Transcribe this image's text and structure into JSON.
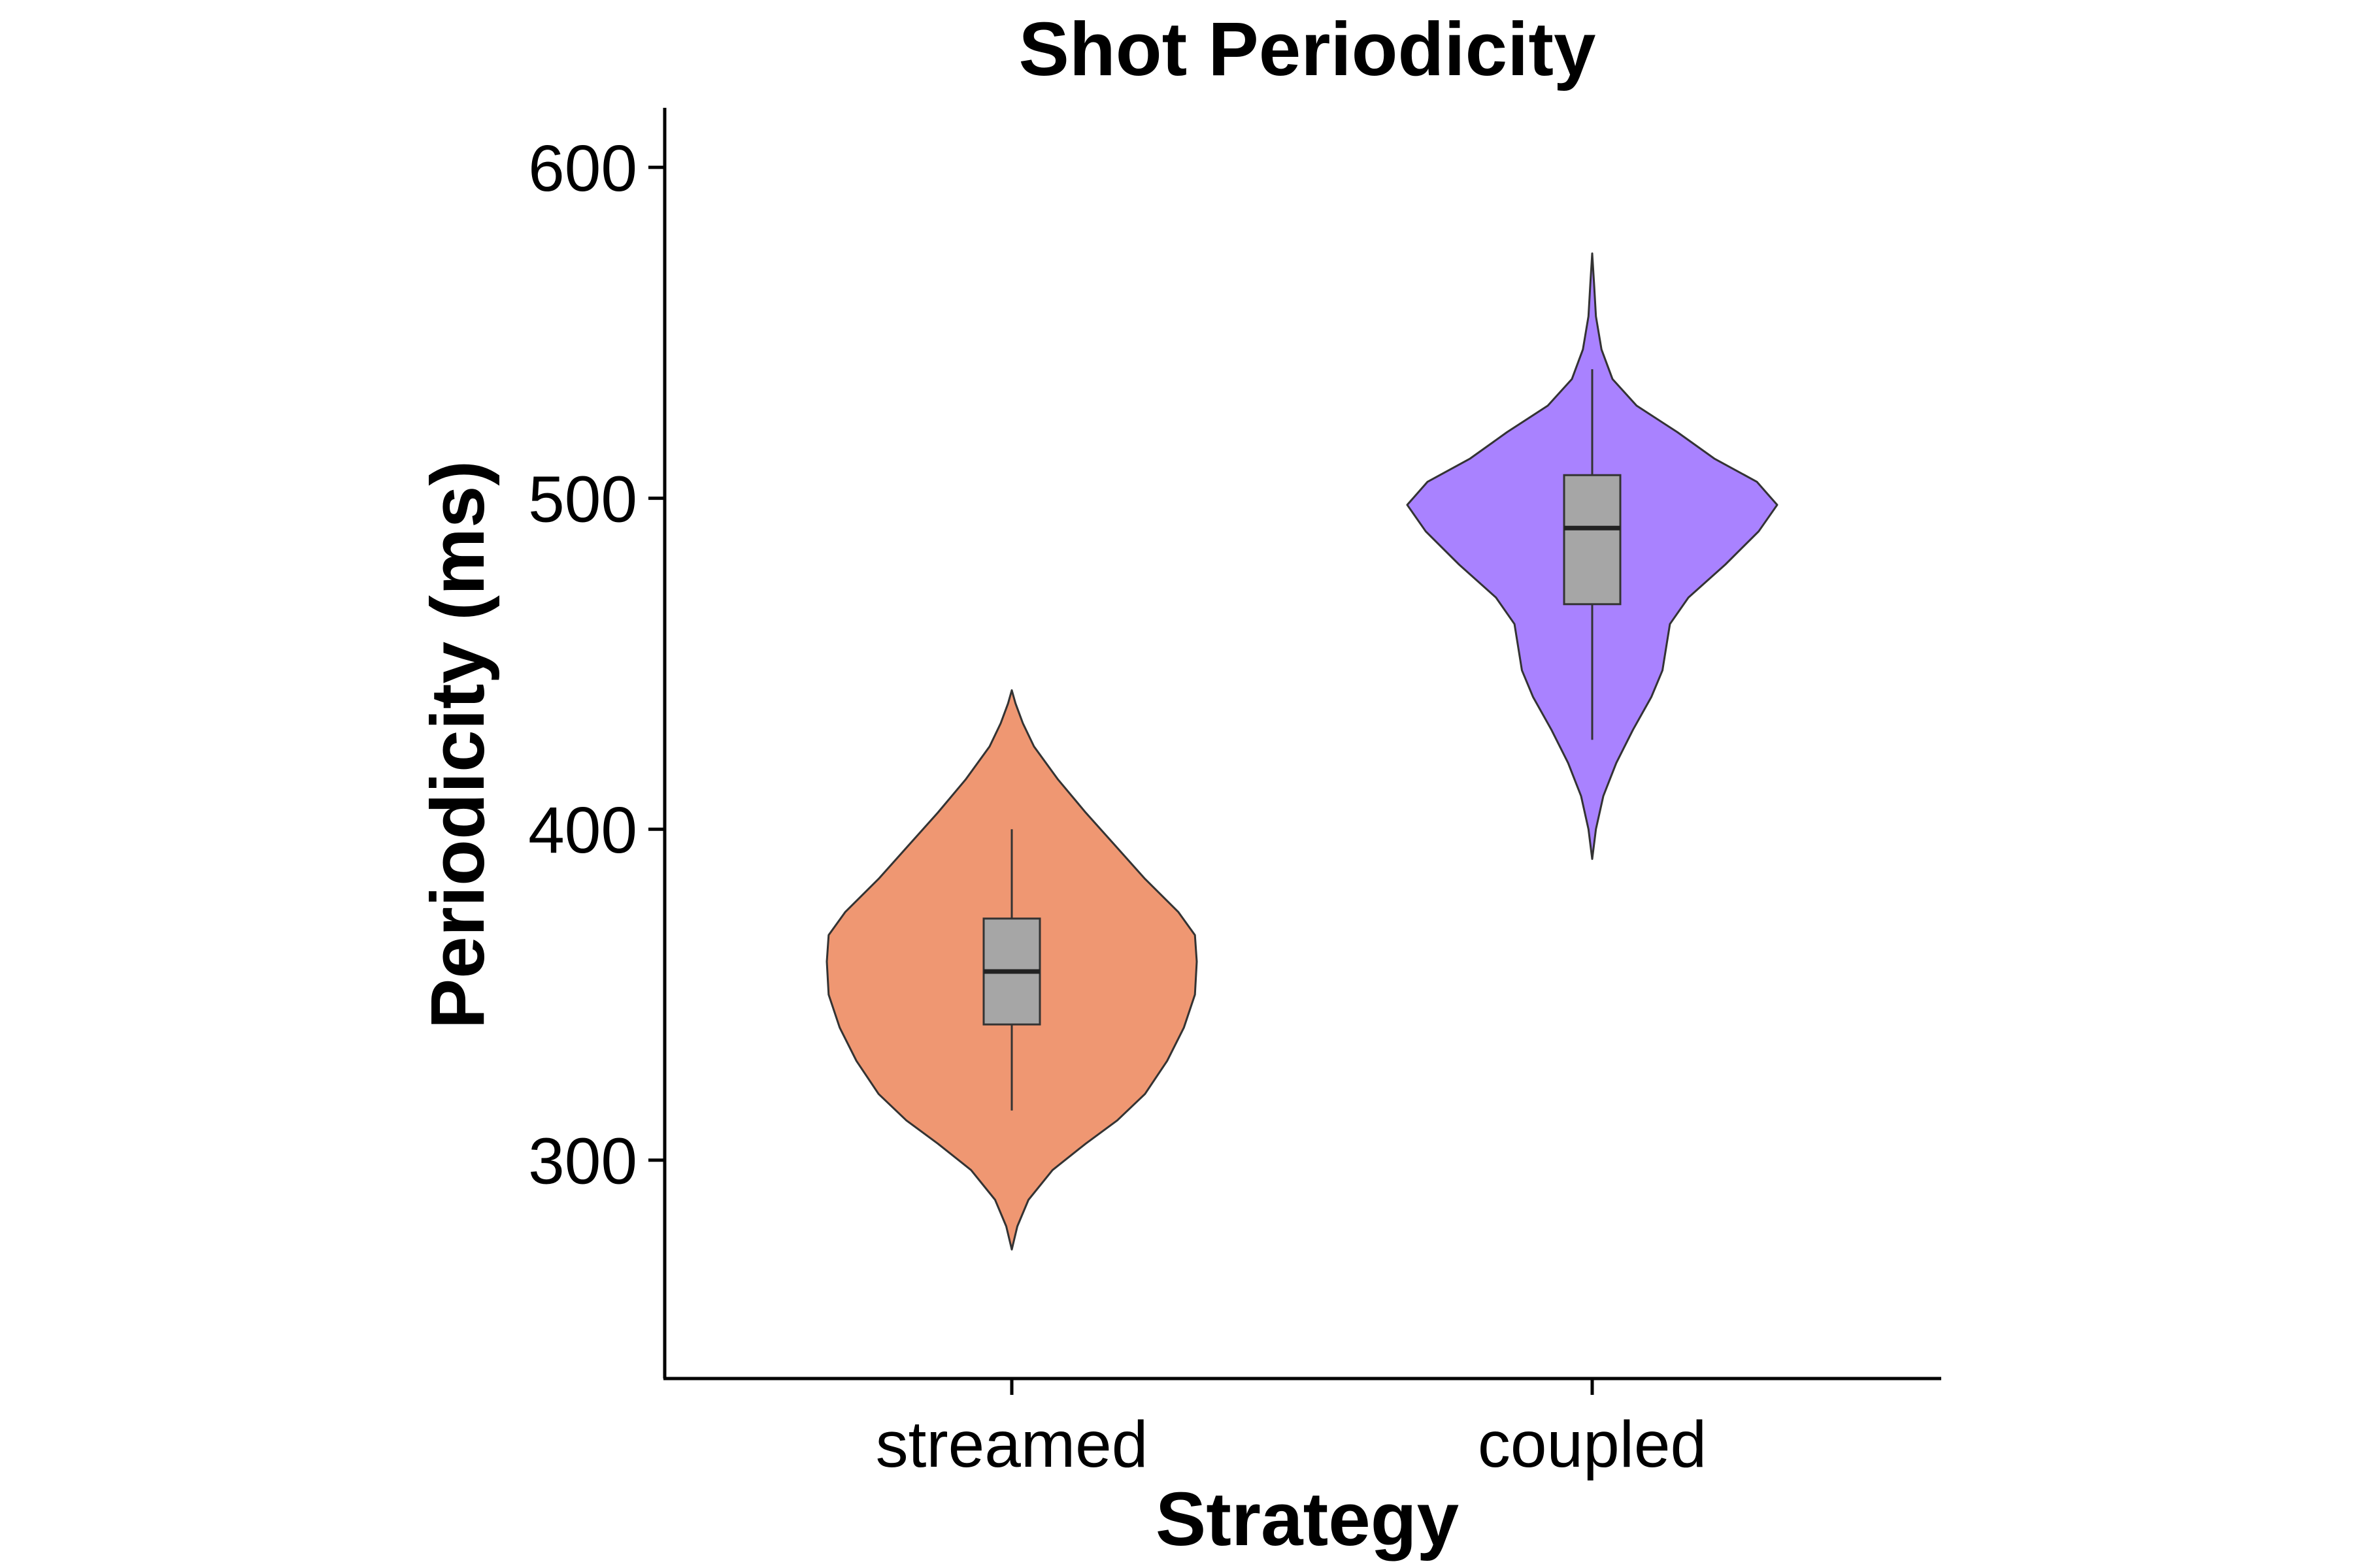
{
  "chart_data": {
    "type": "violin",
    "title": "Shot Periodicity",
    "xlabel": "Strategy",
    "ylabel": "Periodicity (ms)",
    "ylim": [
      234,
      618
    ],
    "yticks": [
      300,
      400,
      500,
      600
    ],
    "categories": [
      "streamed",
      "coupled"
    ],
    "grid": false,
    "legend": "none",
    "box_color": "#a6a6a6",
    "series": [
      {
        "category": "streamed",
        "color": "#ef9772",
        "box": {
          "q1": 341,
          "median": 357,
          "q3": 373,
          "whisker_low": 315,
          "whisker_high": 400
        },
        "violin_min": 273,
        "violin_max": 442,
        "density": [
          [
            273,
            0.0
          ],
          [
            280,
            0.03
          ],
          [
            288,
            0.09
          ],
          [
            297,
            0.22
          ],
          [
            305,
            0.4
          ],
          [
            312,
            0.57
          ],
          [
            320,
            0.72
          ],
          [
            330,
            0.84
          ],
          [
            340,
            0.93
          ],
          [
            350,
            0.99
          ],
          [
            360,
            1.0
          ],
          [
            368,
            0.99
          ],
          [
            375,
            0.9
          ],
          [
            385,
            0.72
          ],
          [
            395,
            0.56
          ],
          [
            405,
            0.4
          ],
          [
            415,
            0.25
          ],
          [
            425,
            0.12
          ],
          [
            432,
            0.06
          ],
          [
            438,
            0.02
          ],
          [
            442,
            0.0
          ]
        ]
      },
      {
        "category": "coupled",
        "color": "#a982ff",
        "box": {
          "q1": 468,
          "median": 491,
          "q3": 507,
          "whisker_low": 427,
          "whisker_high": 539
        },
        "violin_min": 391,
        "violin_max": 574,
        "density": [
          [
            391,
            0.0
          ],
          [
            400,
            0.02
          ],
          [
            410,
            0.06
          ],
          [
            420,
            0.13
          ],
          [
            430,
            0.22
          ],
          [
            440,
            0.32
          ],
          [
            448,
            0.38
          ],
          [
            455,
            0.4
          ],
          [
            462,
            0.42
          ],
          [
            470,
            0.52
          ],
          [
            480,
            0.72
          ],
          [
            490,
            0.9
          ],
          [
            498,
            1.0
          ],
          [
            505,
            0.89
          ],
          [
            512,
            0.66
          ],
          [
            520,
            0.46
          ],
          [
            528,
            0.24
          ],
          [
            536,
            0.11
          ],
          [
            545,
            0.05
          ],
          [
            555,
            0.02
          ],
          [
            565,
            0.01
          ],
          [
            574,
            0.0
          ]
        ]
      }
    ]
  }
}
